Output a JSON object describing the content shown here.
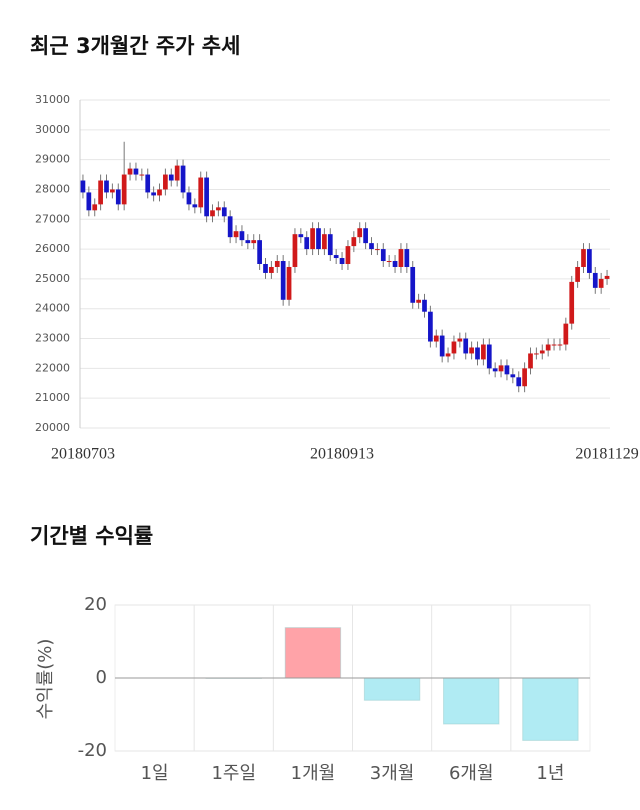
{
  "chart_data": [
    {
      "type": "candlestick",
      "title": "최근 3개월간 주가 추세",
      "categories": [
        "20180703",
        null,
        null,
        null,
        null,
        null,
        null,
        null,
        null,
        null,
        null,
        null,
        null,
        null,
        null,
        null,
        null,
        null,
        null,
        null,
        null,
        null,
        null,
        null,
        null,
        null,
        null,
        null,
        null,
        null,
        null,
        null,
        null,
        null,
        null,
        null,
        null,
        null,
        null,
        null,
        null,
        null,
        null,
        null,
        "20180913",
        null,
        null,
        null,
        null,
        null,
        null,
        null,
        null,
        null,
        null,
        null,
        null,
        null,
        null,
        null,
        null,
        null,
        null,
        null,
        null,
        null,
        null,
        null,
        null,
        null,
        null,
        null,
        null,
        null,
        null,
        null,
        null,
        null,
        null,
        null,
        null,
        null,
        null,
        null,
        null,
        null,
        null,
        null,
        null,
        "20181129"
      ],
      "open": [
        28300,
        27900,
        27300,
        27500,
        28300,
        27900,
        28000,
        27500,
        28500,
        28700,
        28500,
        28500,
        27900,
        27800,
        28000,
        28500,
        28300,
        28800,
        27900,
        27500,
        27400,
        28400,
        27100,
        27300,
        27400,
        27100,
        26400,
        26600,
        26300,
        26200,
        26300,
        25500,
        25200,
        25400,
        25600,
        24300,
        25400,
        26500,
        26400,
        26000,
        26700,
        26000,
        26500,
        25800,
        25700,
        25500,
        26100,
        26400,
        26700,
        26200,
        26000,
        26000,
        25600,
        25600,
        25400,
        26000,
        25400,
        24200,
        24300,
        23900,
        22900,
        23100,
        22400,
        22500,
        22900,
        23000,
        22500,
        22700,
        22300,
        22800,
        22000,
        21900,
        22100,
        21800,
        21700,
        21400,
        22000,
        22500,
        22500,
        22600,
        22800,
        22800,
        22800,
        23500,
        24900,
        25400,
        26000,
        25200,
        24700,
        25000
      ],
      "high": [
        28500,
        28100,
        27700,
        28500,
        28500,
        28200,
        28200,
        29600,
        28900,
        28900,
        28700,
        28700,
        28100,
        28200,
        28700,
        28700,
        29000,
        29000,
        28100,
        27700,
        28600,
        28600,
        27500,
        27600,
        27600,
        27300,
        26800,
        26800,
        26500,
        26500,
        26500,
        25700,
        25600,
        25800,
        25800,
        25600,
        26700,
        26700,
        26600,
        26900,
        26900,
        26700,
        26700,
        26000,
        25900,
        26300,
        26600,
        26900,
        26900,
        26400,
        26200,
        26200,
        25800,
        25800,
        26200,
        26200,
        25600,
        24500,
        24500,
        24100,
        23300,
        23300,
        22700,
        23100,
        23200,
        23200,
        22900,
        22900,
        23000,
        23000,
        22200,
        22300,
        22300,
        22000,
        21900,
        22200,
        22700,
        22700,
        22800,
        23000,
        23000,
        23000,
        23700,
        25100,
        25600,
        26200,
        26200,
        25400,
        25200,
        25300
      ],
      "low": [
        27700,
        27100,
        27100,
        27300,
        27700,
        27700,
        27300,
        27300,
        28300,
        28300,
        28300,
        27700,
        27600,
        27600,
        27800,
        28100,
        28100,
        27700,
        27300,
        27200,
        27200,
        26900,
        26900,
        27100,
        26900,
        26200,
        26200,
        26100,
        26000,
        26000,
        25300,
        25000,
        25000,
        25200,
        24100,
        24100,
        25200,
        26200,
        25800,
        25800,
        25800,
        25800,
        25600,
        25500,
        25300,
        25300,
        25900,
        26200,
        26000,
        25800,
        25800,
        25400,
        25400,
        25200,
        25200,
        25200,
        24000,
        24000,
        23700,
        22700,
        22700,
        22200,
        22200,
        22300,
        22700,
        22300,
        22300,
        22100,
        22100,
        21800,
        21700,
        21700,
        21600,
        21500,
        21200,
        21200,
        21800,
        22300,
        22300,
        22400,
        22600,
        22600,
        22600,
        23300,
        24700,
        25200,
        25000,
        24500,
        24500,
        24800
      ],
      "close": [
        27900,
        27300,
        27500,
        28300,
        27900,
        28000,
        27500,
        28500,
        28700,
        28500,
        28500,
        27900,
        27800,
        28000,
        28500,
        28300,
        28800,
        27900,
        27500,
        27400,
        28400,
        27100,
        27300,
        27400,
        27100,
        26400,
        26600,
        26300,
        26200,
        26300,
        25500,
        25200,
        25400,
        25600,
        24300,
        25400,
        26500,
        26400,
        26000,
        26700,
        26000,
        26500,
        25800,
        25700,
        25500,
        26100,
        26400,
        26700,
        26200,
        26000,
        26000,
        25600,
        25600,
        25400,
        26000,
        25400,
        24200,
        24300,
        23900,
        22900,
        23100,
        22400,
        22500,
        22900,
        23000,
        22500,
        22700,
        22300,
        22800,
        22000,
        21900,
        22100,
        21800,
        21700,
        21400,
        22000,
        22500,
        22500,
        22600,
        22800,
        22800,
        22800,
        23500,
        24900,
        25400,
        26000,
        25200,
        24700,
        25000,
        25100
      ],
      "up_color": "#d0191a",
      "down_color": "#1515c8",
      "ylim": [
        20000,
        31000
      ],
      "yticks": [
        20000,
        21000,
        22000,
        23000,
        24000,
        25000,
        26000,
        27000,
        28000,
        29000,
        30000,
        31000
      ],
      "grid": true
    },
    {
      "type": "bar",
      "title": "기간별 수익률",
      "ylabel": "수익률(%)",
      "categories": [
        "1일",
        "1주일",
        "1개월",
        "3개월",
        "6개월",
        "1년"
      ],
      "values": [
        0,
        -0.1,
        13.8,
        -6.1,
        -12.6,
        -17.1
      ],
      "positive_color": "#ffa3a8",
      "negative_color": "#b0ebf3",
      "ylim": [
        -20,
        20
      ],
      "yticks": [
        -20,
        0,
        20
      ],
      "grid": true
    }
  ]
}
